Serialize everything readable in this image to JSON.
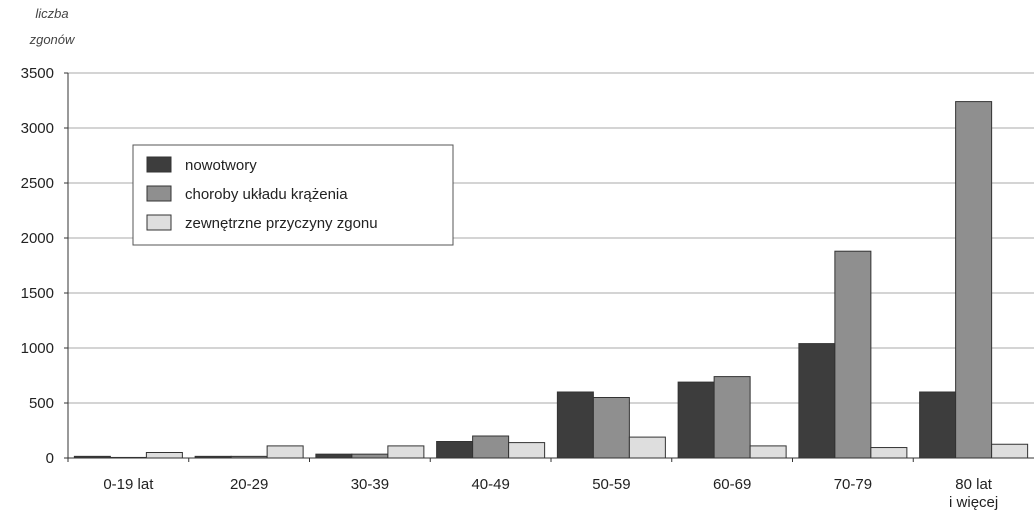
{
  "chart_data": {
    "type": "bar",
    "title": "",
    "xlabel": "",
    "ylabel_lines": [
      "liczba",
      "zgonów"
    ],
    "categories": [
      [
        "0-19 lat"
      ],
      [
        "20-29"
      ],
      [
        "30-39"
      ],
      [
        "40-49"
      ],
      [
        "50-59"
      ],
      [
        "60-69"
      ],
      [
        "70-79"
      ],
      [
        "80 lat",
        "i więcej"
      ]
    ],
    "yticks": [
      0,
      500,
      1000,
      1500,
      2000,
      2500,
      3000,
      3500
    ],
    "ylim": [
      0,
      3500
    ],
    "grid": true,
    "legend_position": "top-left",
    "series": [
      {
        "name": "nowotwory",
        "color": "#3d3d3d",
        "values": [
          15,
          15,
          35,
          150,
          600,
          690,
          1040,
          600
        ]
      },
      {
        "name": "choroby układu krążenia",
        "color": "#8f8f8f",
        "values": [
          5,
          15,
          35,
          200,
          550,
          740,
          1880,
          3240
        ]
      },
      {
        "name": "zewnętrzne przyczyny zgonu",
        "color": "#dedede",
        "values": [
          50,
          110,
          110,
          140,
          190,
          110,
          95,
          125
        ]
      }
    ]
  }
}
